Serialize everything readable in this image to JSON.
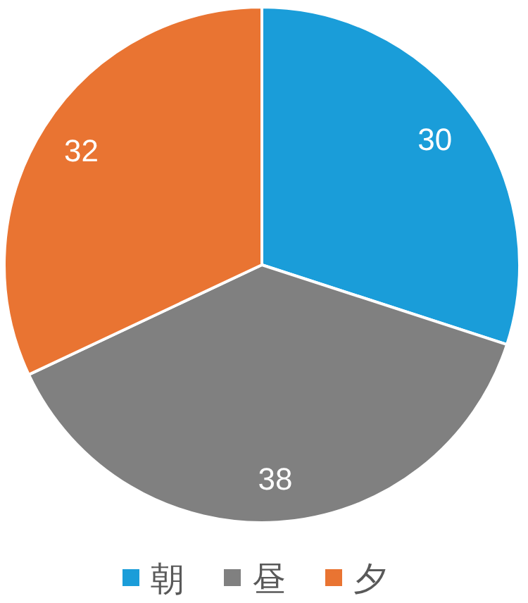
{
  "chart_data": {
    "type": "pie",
    "categories": [
      "朝",
      "昼",
      "夕"
    ],
    "values": [
      30,
      38,
      32
    ],
    "colors": [
      "#1a9dd9",
      "#808080",
      "#e97432"
    ],
    "data_labels": true,
    "legend": "bottom"
  }
}
